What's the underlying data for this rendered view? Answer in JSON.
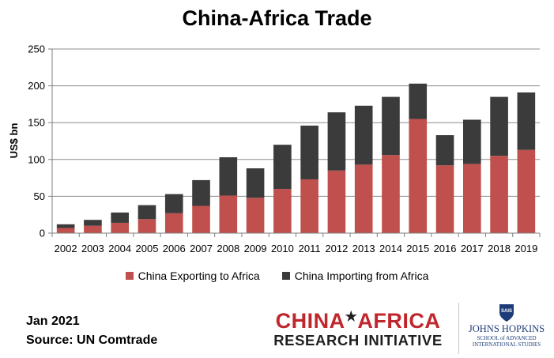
{
  "chart_data": {
    "type": "bar",
    "stacked": true,
    "title": "China-Africa Trade",
    "ylabel": "US$ bn",
    "xlabel": "",
    "ylim": [
      0,
      250
    ],
    "yticks": [
      0,
      50,
      100,
      150,
      200,
      250
    ],
    "grid": true,
    "legend_position": "bottom",
    "categories": [
      "2002",
      "2003",
      "2004",
      "2005",
      "2006",
      "2007",
      "2008",
      "2009",
      "2010",
      "2011",
      "2012",
      "2013",
      "2014",
      "2015",
      "2016",
      "2017",
      "2018",
      "2019"
    ],
    "series": [
      {
        "name": "China Exporting to Africa",
        "color": "#c0504d",
        "values": [
          7,
          10,
          14,
          19,
          27,
          37,
          51,
          48,
          60,
          73,
          85,
          93,
          106,
          155,
          92,
          94,
          105,
          113
        ]
      },
      {
        "name": "China Importing from Africa",
        "color": "#3b3b3b",
        "values": [
          5,
          8,
          14,
          19,
          26,
          35,
          52,
          40,
          60,
          73,
          79,
          80,
          79,
          48,
          41,
          60,
          80,
          78
        ]
      }
    ]
  },
  "footer": {
    "date": "Jan 2021",
    "source": "Source: UN Comtrade"
  },
  "logos": {
    "cari_line1_a": "CHINA",
    "cari_star": "★",
    "cari_line1_b": "AFRICA",
    "cari_line2": "RESEARCH INITIATIVE",
    "sais": "SAIS",
    "jhu_name": "JOHNS HOPKINS",
    "jhu_sub1": "SCHOOL of ADVANCED",
    "jhu_sub2": "INTERNATIONAL STUDIES"
  },
  "colors": {
    "export": "#c0504d",
    "import": "#3b3b3b",
    "grid": "#8c8c8c",
    "cari_red": "#c0272d",
    "jhu_blue": "#1d3c78"
  }
}
